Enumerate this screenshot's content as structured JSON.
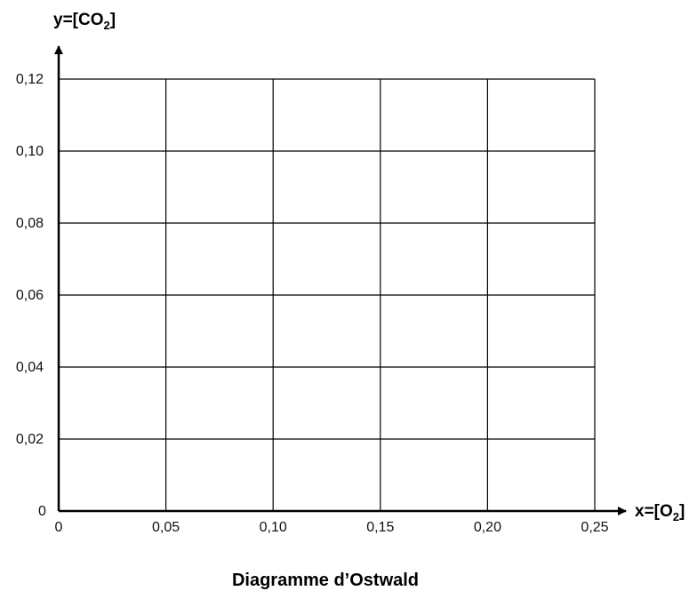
{
  "chart_data": {
    "type": "line",
    "title": "Diagramme d’Ostwald",
    "xlabel": {
      "prefix": "x=[O",
      "sub": "2",
      "suffix": "]"
    },
    "ylabel": {
      "prefix": "y=[CO",
      "sub": "2",
      "suffix": "]"
    },
    "xlim": [
      0,
      0.25
    ],
    "ylim": [
      0,
      0.12
    ],
    "grid": true,
    "origin_label": "0",
    "x_ticks": [
      {
        "value": 0,
        "label": "0"
      },
      {
        "value": 0.05,
        "label": "0,05"
      },
      {
        "value": 0.1,
        "label": "0,10"
      },
      {
        "value": 0.15,
        "label": "0,15"
      },
      {
        "value": 0.2,
        "label": "0,20"
      },
      {
        "value": 0.25,
        "label": "0,25"
      }
    ],
    "y_ticks": [
      {
        "value": 0.02,
        "label": "0,02"
      },
      {
        "value": 0.04,
        "label": "0,04"
      },
      {
        "value": 0.06,
        "label": "0,06"
      },
      {
        "value": 0.08,
        "label": "0,08"
      },
      {
        "value": 0.1,
        "label": "0,10"
      },
      {
        "value": 0.12,
        "label": "0,12"
      }
    ],
    "series": []
  }
}
